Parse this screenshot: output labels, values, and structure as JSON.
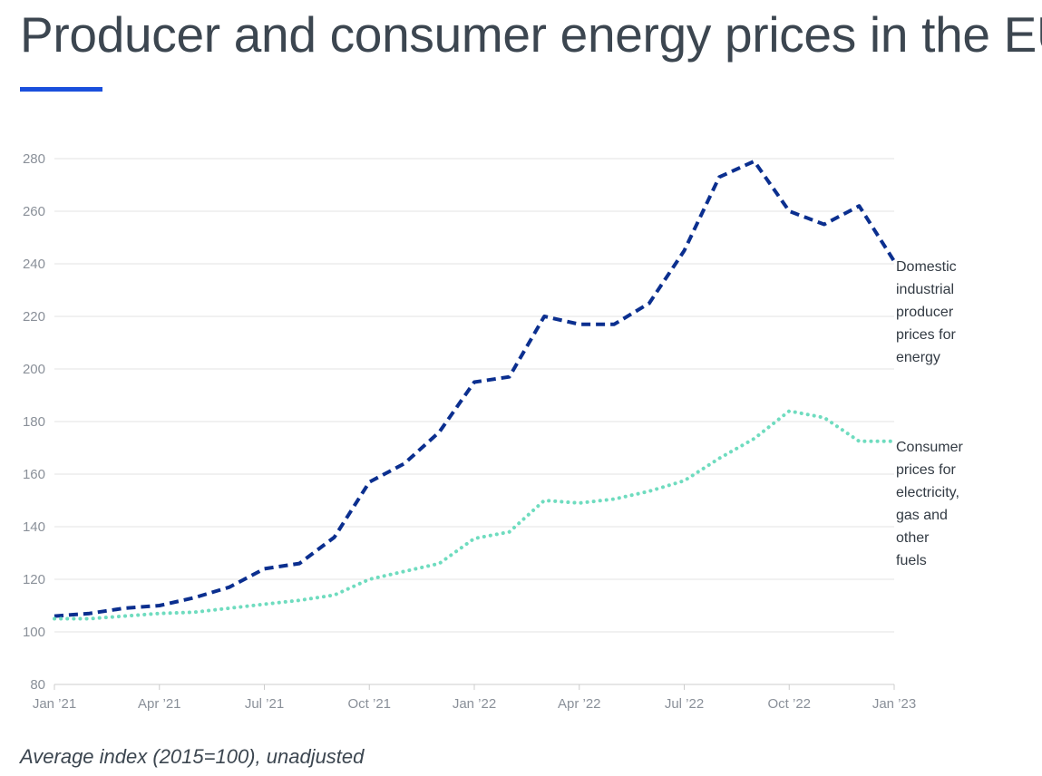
{
  "header": {
    "title": "Producer and consumer energy prices in the EU",
    "accent_color": "#1a4fdc"
  },
  "footnote": "Average index (2015=100), unadjusted",
  "chart_data": {
    "type": "line",
    "title": "Producer and consumer energy prices in the EU",
    "ylim": [
      80,
      280
    ],
    "y_ticks": [
      80,
      100,
      120,
      140,
      160,
      180,
      200,
      220,
      240,
      260,
      280
    ],
    "x_ticks": [
      "Jan ’21",
      "Apr ’21",
      "Jul ’21",
      "Oct ’21",
      "Jan ’22",
      "Apr ’22",
      "Jul ’22",
      "Oct ’22",
      "Jan ’23"
    ],
    "x": [
      "2021-01",
      "2021-02",
      "2021-03",
      "2021-04",
      "2021-05",
      "2021-06",
      "2021-07",
      "2021-08",
      "2021-09",
      "2021-10",
      "2021-11",
      "2021-12",
      "2022-01",
      "2022-02",
      "2022-03",
      "2022-04",
      "2022-05",
      "2022-06",
      "2022-07",
      "2022-08",
      "2022-09",
      "2022-10",
      "2022-11",
      "2022-12",
      "2023-01"
    ],
    "grid": true,
    "legend": "inline-right",
    "series": [
      {
        "name": "Domestic industrial producer prices for energy",
        "label_lines": [
          "Domestic",
          "industrial",
          "producer",
          "prices for",
          "energy"
        ],
        "color": "#0b2f8f",
        "style": "dashed",
        "values": [
          106,
          107,
          109,
          110,
          113,
          117,
          124,
          126,
          136,
          157,
          164,
          176,
          195,
          197,
          220,
          217,
          217,
          225,
          245,
          273,
          279,
          260,
          255,
          262,
          241
        ]
      },
      {
        "name": "Consumer prices for electricity, gas and other fuels",
        "label_lines": [
          "Consumer",
          "prices for",
          "electricity,",
          "gas and",
          "other",
          "fuels"
        ],
        "color": "#6fdcbf",
        "style": "dotted",
        "values": [
          105,
          105,
          106,
          107,
          107.5,
          109,
          110.5,
          112,
          114,
          120,
          123,
          126,
          135.5,
          138,
          150,
          149,
          150.5,
          153.5,
          157.5,
          166,
          173.5,
          184,
          181.5,
          172.5,
          172.5
        ]
      }
    ]
  }
}
